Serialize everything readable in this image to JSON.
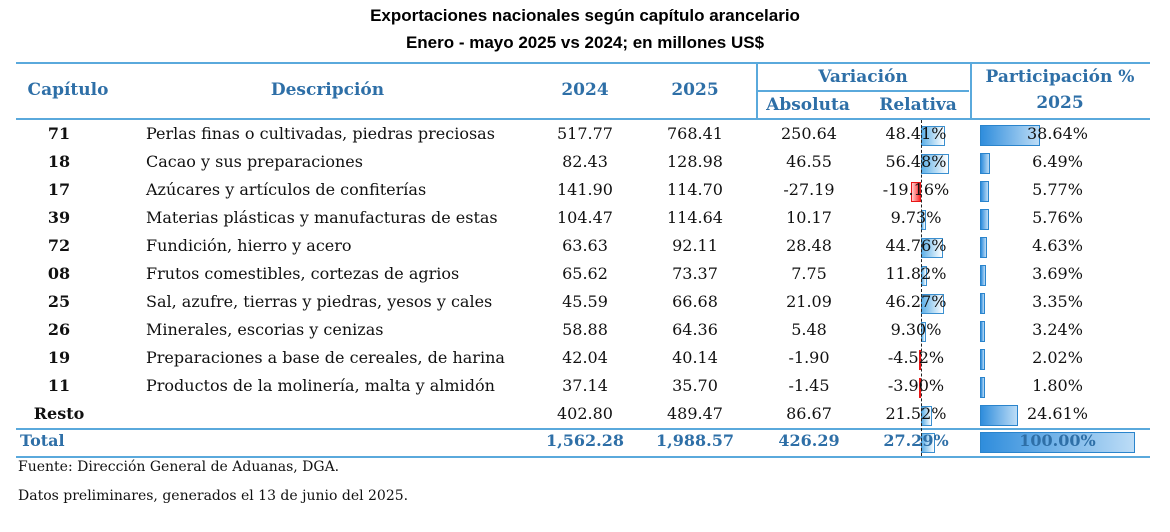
{
  "title": "Exportaciones nacionales según capítulo arancelario",
  "subtitle": "Enero - mayo 2025 vs 2024; en millones US$",
  "headers": {
    "capitulo": "Capítulo",
    "descripcion": "Descripción",
    "y2024": "2024",
    "y2025": "2025",
    "variacion": "Variación",
    "absoluta": "Absoluta",
    "relativa": "Relativa",
    "participacion": "Participación %",
    "participacion_year": "2025"
  },
  "rows": [
    {
      "chapter": "71",
      "description": "Perlas finas o cultivadas, piedras preciosas",
      "v2024": "517.77",
      "v2025": "768.41",
      "abs": "250.64",
      "rel": "48.41%",
      "rel_value": 48.41,
      "part": "38.64%",
      "part_value": 38.64
    },
    {
      "chapter": "18",
      "description": "Cacao y sus preparaciones",
      "v2024": "82.43",
      "v2025": "128.98",
      "abs": "46.55",
      "rel": "56.48%",
      "rel_value": 56.48,
      "part": "6.49%",
      "part_value": 6.49
    },
    {
      "chapter": "17",
      "description": "Azúcares y artículos de confiterías",
      "v2024": "141.90",
      "v2025": "114.70",
      "abs": "-27.19",
      "rel": "-19.16%",
      "rel_value": -19.16,
      "part": "5.77%",
      "part_value": 5.77
    },
    {
      "chapter": "39",
      "description": "Materias plásticas y manufacturas de estas",
      "v2024": "104.47",
      "v2025": "114.64",
      "abs": "10.17",
      "rel": "9.73%",
      "rel_value": 9.73,
      "part": "5.76%",
      "part_value": 5.76
    },
    {
      "chapter": "72",
      "description": "Fundición, hierro y acero",
      "v2024": "63.63",
      "v2025": "92.11",
      "abs": "28.48",
      "rel": "44.76%",
      "rel_value": 44.76,
      "part": "4.63%",
      "part_value": 4.63
    },
    {
      "chapter": "08",
      "description": "Frutos comestibles, cortezas de agrios",
      "v2024": "65.62",
      "v2025": "73.37",
      "abs": "7.75",
      "rel": "11.82%",
      "rel_value": 11.82,
      "part": "3.69%",
      "part_value": 3.69
    },
    {
      "chapter": "25",
      "description": "Sal, azufre, tierras y piedras, yesos y cales",
      "v2024": "45.59",
      "v2025": "66.68",
      "abs": "21.09",
      "rel": "46.27%",
      "rel_value": 46.27,
      "part": "3.35%",
      "part_value": 3.35
    },
    {
      "chapter": "26",
      "description": "Minerales, escorias y cenizas",
      "v2024": "58.88",
      "v2025": "64.36",
      "abs": "5.48",
      "rel": "9.30%",
      "rel_value": 9.3,
      "part": "3.24%",
      "part_value": 3.24
    },
    {
      "chapter": "19",
      "description": "Preparaciones a base de cereales, de harina",
      "v2024": "42.04",
      "v2025": "40.14",
      "abs": "-1.90",
      "rel": "-4.52%",
      "rel_value": -4.52,
      "part": "2.02%",
      "part_value": 2.02
    },
    {
      "chapter": "11",
      "description": "Productos de la molinería, malta y almidón",
      "v2024": "37.14",
      "v2025": "35.70",
      "abs": "-1.45",
      "rel": "-3.90%",
      "rel_value": -3.9,
      "part": "1.80%",
      "part_value": 1.8
    },
    {
      "chapter": "Resto",
      "description": "",
      "v2024": "402.80",
      "v2025": "489.47",
      "abs": "86.67",
      "rel": "21.52%",
      "rel_value": 21.52,
      "part": "24.61%",
      "part_value": 24.61
    }
  ],
  "total": {
    "label": "Total",
    "v2024": "1,562.28",
    "v2025": "1,988.57",
    "abs": "426.29",
    "rel": "27.29%",
    "rel_value": 27.29,
    "part": "100.00%",
    "part_value": 100.0
  },
  "footnotes": {
    "source": "Fuente: Dirección General de Aduanas, DGA.",
    "note": "Datos preliminares, generados el  13 de junio del  2025."
  }
}
